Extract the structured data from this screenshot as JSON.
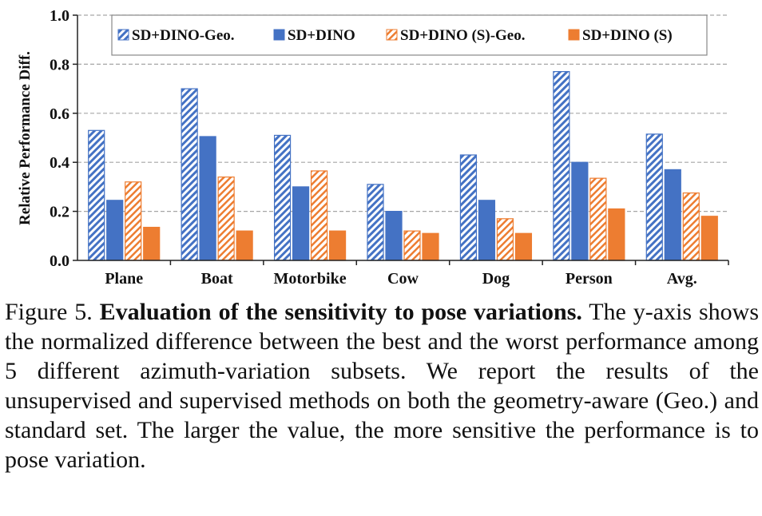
{
  "chart_data": {
    "type": "bar",
    "ylabel": "Relative Performance Diff.",
    "ylim": [
      0.0,
      1.0
    ],
    "yticks": [
      "0.0",
      "0.2",
      "0.4",
      "0.6",
      "0.8",
      "1.0"
    ],
    "grid": true,
    "legend_position": "top-right",
    "categories": [
      "Plane",
      "Boat",
      "Motorbike",
      "Cow",
      "Dog",
      "Person",
      "Avg."
    ],
    "series": [
      {
        "name": "SD+DINO-Geo.",
        "color": "#4472c4",
        "pattern": "hatched",
        "values": [
          0.53,
          0.7,
          0.51,
          0.31,
          0.43,
          0.77,
          0.515
        ]
      },
      {
        "name": "SD+DINO",
        "color": "#4472c4",
        "pattern": "solid",
        "values": [
          0.245,
          0.505,
          0.3,
          0.2,
          0.245,
          0.4,
          0.37
        ]
      },
      {
        "name": "SD+DINO (S)-Geo.",
        "color": "#ed7d31",
        "pattern": "hatched",
        "values": [
          0.32,
          0.34,
          0.365,
          0.12,
          0.17,
          0.335,
          0.275
        ]
      },
      {
        "name": "SD+DINO (S)",
        "color": "#ed7d31",
        "pattern": "solid",
        "values": [
          0.135,
          0.12,
          0.12,
          0.11,
          0.11,
          0.21,
          0.18
        ]
      }
    ]
  },
  "caption": {
    "label": "Figure 5.",
    "bold_title": "Evaluation of the sensitivity to pose variations.",
    "text": "The y-axis shows the normalized difference between the best and the worst performance among 5 different azimuth-variation subsets. We report the results of the unsupervised and supervised methods on both the geometry-aware (Geo.) and standard set. The larger the value, the more sensitive the performance is to pose variation."
  }
}
